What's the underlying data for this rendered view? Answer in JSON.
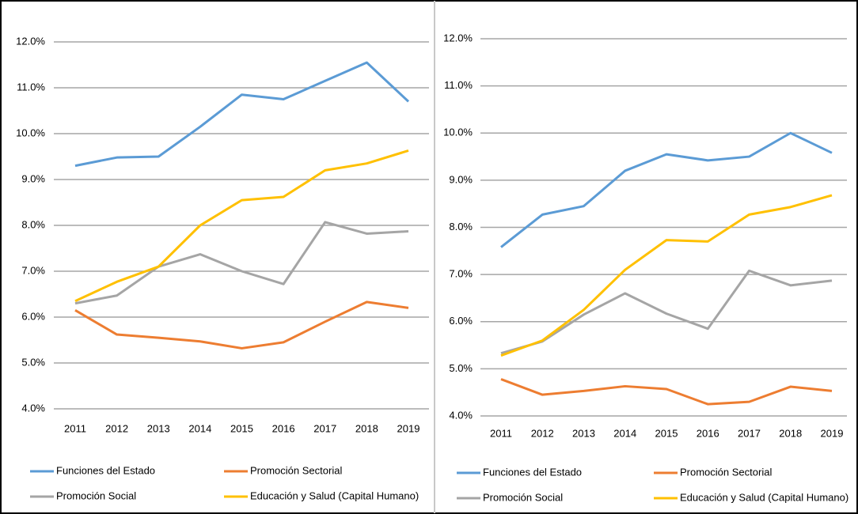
{
  "chart_data": [
    {
      "type": "line",
      "categories": [
        "2011",
        "2012",
        "2013",
        "2014",
        "2015",
        "2016",
        "2017",
        "2018",
        "2019"
      ],
      "ylim": [
        4,
        12
      ],
      "grid": true,
      "legend": "bottom",
      "yticks": [
        {
          "value": 4,
          "label": "4.0%"
        },
        {
          "value": 5,
          "label": "5.0%"
        },
        {
          "value": 6,
          "label": "6.0%"
        },
        {
          "value": 7,
          "label": "7.0%"
        },
        {
          "value": 8,
          "label": "8.0%"
        },
        {
          "value": 9,
          "label": "9.0%"
        },
        {
          "value": 10,
          "label": "10.0%"
        },
        {
          "value": 11,
          "label": "11.0%"
        },
        {
          "value": 12,
          "label": "12.0%"
        }
      ],
      "series": [
        {
          "name": "Funciones del Estado",
          "color": "#5b9bd5",
          "values": [
            9.3,
            9.48,
            9.5,
            10.15,
            10.85,
            10.75,
            11.15,
            11.55,
            10.7
          ]
        },
        {
          "name": "Promoción Sectorial",
          "color": "#ed7d31",
          "values": [
            6.15,
            5.62,
            5.55,
            5.47,
            5.32,
            5.45,
            5.9,
            6.33,
            6.2
          ]
        },
        {
          "name": "Promoción Social",
          "color": "#a5a5a5",
          "values": [
            6.3,
            6.47,
            7.1,
            7.37,
            7.0,
            6.72,
            8.07,
            7.82,
            7.87
          ]
        },
        {
          "name": "Educación y Salud (Capital Humano)",
          "color": "#ffc000",
          "values": [
            6.35,
            6.77,
            7.1,
            8.0,
            8.55,
            8.62,
            9.2,
            9.35,
            9.63
          ]
        }
      ]
    },
    {
      "type": "line",
      "categories": [
        "2011",
        "2012",
        "2013",
        "2014",
        "2015",
        "2016",
        "2017",
        "2018",
        "2019"
      ],
      "ylim": [
        4,
        12
      ],
      "grid": true,
      "legend": "bottom",
      "yticks": [
        {
          "value": 4,
          "label": "4.0%"
        },
        {
          "value": 5,
          "label": "5.0%"
        },
        {
          "value": 6,
          "label": "6.0%"
        },
        {
          "value": 7,
          "label": "7.0%"
        },
        {
          "value": 8,
          "label": "8.0%"
        },
        {
          "value": 9,
          "label": "9.0%"
        },
        {
          "value": 10,
          "label": "10.0%"
        },
        {
          "value": 11,
          "label": "11.0%"
        },
        {
          "value": 12,
          "label": "12.0%"
        }
      ],
      "series": [
        {
          "name": "Funciones del Estado",
          "color": "#5b9bd5",
          "values": [
            7.58,
            8.27,
            8.45,
            9.2,
            9.55,
            9.42,
            9.5,
            10.0,
            9.58
          ]
        },
        {
          "name": "Promoción Sectorial",
          "color": "#ed7d31",
          "values": [
            4.78,
            4.45,
            4.53,
            4.63,
            4.57,
            4.25,
            4.3,
            4.62,
            4.53
          ]
        },
        {
          "name": "Promoción Social",
          "color": "#a5a5a5",
          "values": [
            5.33,
            5.58,
            6.15,
            6.6,
            6.17,
            5.85,
            7.08,
            6.77,
            6.87
          ]
        },
        {
          "name": "Educación y Salud (Capital Humano)",
          "color": "#ffc000",
          "values": [
            5.28,
            5.6,
            6.25,
            7.1,
            7.73,
            7.7,
            8.27,
            8.43,
            8.68
          ]
        }
      ]
    }
  ]
}
